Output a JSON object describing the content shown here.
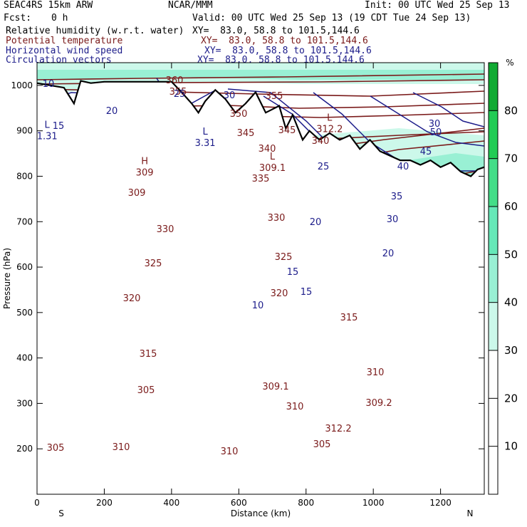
{
  "header": {
    "model": "SEAC4RS 15km ARW",
    "center": "NCAR/MMM",
    "init": "Init: 00 UTC Wed 25 Sep 13",
    "fcst_label": "Fcst:",
    "fcst_value": "0 h",
    "valid": "Valid: 00 UTC Wed 25 Sep 13 (19 CDT Tue 24 Sep 13)",
    "fields": [
      {
        "name": "Relative humidity (w.r.t. water)",
        "xy": "XY=  83.0, 58.8 to 101.5,144.6",
        "color": "#000000"
      },
      {
        "name": "Potential temperature",
        "xy": "XY=  83.0, 58.8 to 101.5,144.6",
        "color": "#7a1a1a"
      },
      {
        "name": "Horizontal wind speed",
        "xy": "XY=  83.0, 58.8 to 101.5,144.6",
        "color": "#1c1c8a"
      },
      {
        "name": "Circulation vectors",
        "xy": "XY=  83.0, 58.8 to 101.5,144.6",
        "color": "#1c1c8a"
      }
    ]
  },
  "chart_data": {
    "type": "cross-section",
    "xlabel": "Distance (km)",
    "ylabel": "Pressure (hPa)",
    "xlim": [
      0,
      1330
    ],
    "ylim": [
      1050,
      100
    ],
    "x_ticks": [
      0,
      200,
      400,
      600,
      800,
      1000,
      1200
    ],
    "y_ticks": [
      200,
      300,
      400,
      500,
      600,
      700,
      800,
      900,
      1000
    ],
    "end_labels": {
      "left": "S",
      "right": "N"
    },
    "colorbar": {
      "unit": "%",
      "ticks": [
        10,
        20,
        30,
        40,
        50,
        60,
        70,
        80
      ],
      "range": [
        0,
        90
      ],
      "shaded_bands": [
        {
          "from": 30,
          "to": 40,
          "color": "#ccf8ea"
        },
        {
          "from": 40,
          "to": 50,
          "color": "#99f0d4"
        },
        {
          "from": 50,
          "to": 60,
          "color": "#66e8b8"
        },
        {
          "from": 60,
          "to": 70,
          "color": "#44dd88"
        },
        {
          "from": 70,
          "to": 80,
          "color": "#22cc55"
        },
        {
          "from": 80,
          "to": 90,
          "color": "#11aa33"
        }
      ]
    },
    "theta_labels": [
      "360",
      "355",
      "355",
      "350",
      "345",
      "345",
      "340",
      "340",
      "335",
      "330",
      "330",
      "325",
      "325",
      "320",
      "320",
      "315",
      "315",
      "310",
      "310",
      "310",
      "305",
      "305",
      "310",
      "305",
      "309.1",
      "309.2",
      "312.2",
      "309"
    ],
    "wind_labels": [
      "10",
      "25",
      "20",
      "15",
      "30",
      "30",
      "40",
      "45",
      "50",
      "25",
      "35",
      "30",
      "20",
      "20",
      "15",
      "15",
      "10"
    ],
    "highs_lows": [
      {
        "type": "H",
        "value": "309",
        "km": 320,
        "p": 805
      },
      {
        "type": "L",
        "value": "1.31",
        "km": 30,
        "p": 885
      },
      {
        "type": "L",
        "value": "3.31",
        "km": 500,
        "p": 870
      },
      {
        "type": "L",
        "value": "309.1",
        "km": 700,
        "p": 815
      },
      {
        "type": "L",
        "value": "312.2",
        "km": 870,
        "p": 900
      }
    ],
    "terrain_surface": [
      [
        0,
        1005
      ],
      [
        40,
        1000
      ],
      [
        80,
        995
      ],
      [
        110,
        960
      ],
      [
        130,
        1010
      ],
      [
        160,
        1005
      ],
      [
        200,
        1008
      ],
      [
        300,
        1008
      ],
      [
        400,
        1008
      ],
      [
        430,
        985
      ],
      [
        460,
        960
      ],
      [
        480,
        940
      ],
      [
        500,
        965
      ],
      [
        530,
        990
      ],
      [
        560,
        970
      ],
      [
        590,
        940
      ],
      [
        620,
        960
      ],
      [
        650,
        985
      ],
      [
        680,
        940
      ],
      [
        720,
        955
      ],
      [
        740,
        905
      ],
      [
        760,
        935
      ],
      [
        790,
        880
      ],
      [
        810,
        900
      ],
      [
        840,
        880
      ],
      [
        870,
        895
      ],
      [
        900,
        880
      ],
      [
        930,
        890
      ],
      [
        960,
        860
      ],
      [
        990,
        880
      ],
      [
        1020,
        855
      ],
      [
        1050,
        845
      ],
      [
        1080,
        835
      ],
      [
        1110,
        835
      ],
      [
        1140,
        825
      ],
      [
        1170,
        835
      ],
      [
        1200,
        820
      ],
      [
        1230,
        830
      ],
      [
        1260,
        810
      ],
      [
        1290,
        800
      ],
      [
        1310,
        815
      ],
      [
        1330,
        820
      ]
    ]
  }
}
